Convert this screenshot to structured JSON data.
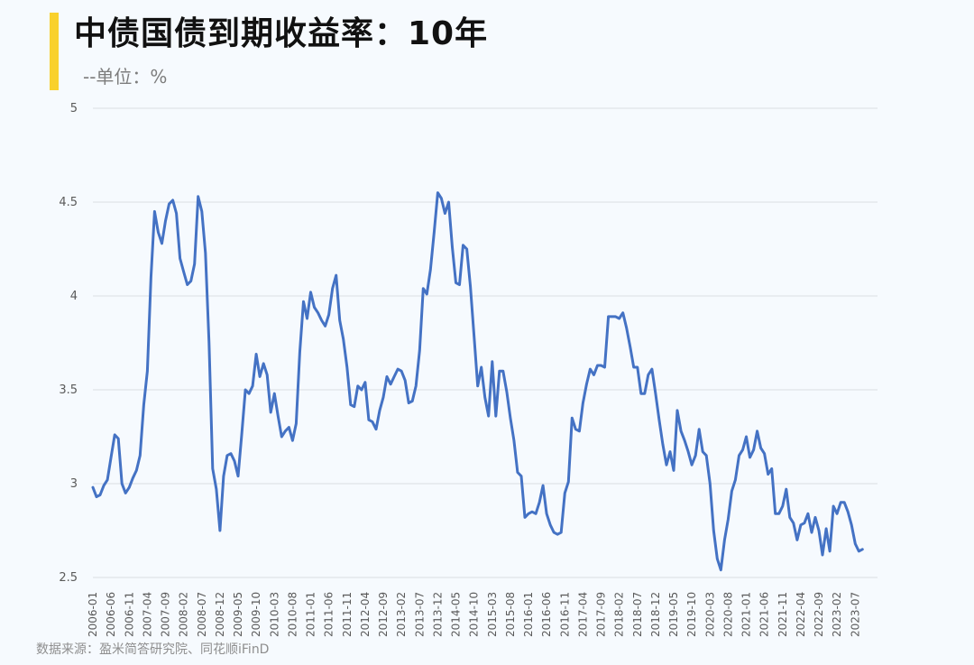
{
  "header": {
    "title": "中债国债到期收益率：10年",
    "subtitle": "--单位：%"
  },
  "footer": {
    "source": "数据来源：盈米简答研究院、同花顺iFinD"
  },
  "colors": {
    "accent": "#f9d12c",
    "line": "#4472c4",
    "grid": "#d9dde3",
    "background": "#f6fafe"
  },
  "chart_data": {
    "type": "line",
    "title": "中债国债到期收益率：10年",
    "ylabel": "%",
    "xlabel": "",
    "ylim": [
      2.5,
      5
    ],
    "yticks": [
      "5",
      "4.5",
      "4",
      "3.5",
      "3",
      "2.5"
    ],
    "grid": true,
    "x_start": "2006-01",
    "x_tick_labels": [
      "2006-01",
      "2006-06",
      "2006-11",
      "2007-04",
      "2007-09",
      "2008-02",
      "2008-07",
      "2008-12",
      "2009-05",
      "2009-10",
      "2010-03",
      "2010-08",
      "2011-01",
      "2011-06",
      "2011-11",
      "2012-04",
      "2012-09",
      "2013-02",
      "2013-07",
      "2013-12",
      "2014-05",
      "2014-10",
      "2015-03",
      "2015-08",
      "2016-01",
      "2016-06",
      "2016-11",
      "2017-04",
      "2017-09",
      "2018-02",
      "2018-07",
      "2018-12",
      "2019-05",
      "2019-10",
      "2020-03",
      "2020-08",
      "2021-01",
      "2021-06",
      "2021-11",
      "2022-04",
      "2022-09",
      "2023-02",
      "2023-07"
    ],
    "series": [
      {
        "values": [
          2.98,
          2.93,
          2.94,
          2.99,
          3.02,
          3.14,
          3.26,
          3.24,
          3.0,
          2.95,
          2.98,
          3.03,
          3.07,
          3.15,
          3.42,
          3.6,
          4.1,
          4.45,
          4.34,
          4.28,
          4.4,
          4.49,
          4.51,
          4.44,
          4.2,
          4.13,
          4.06,
          4.08,
          4.17,
          4.53,
          4.45,
          4.23,
          3.75,
          3.08,
          2.97,
          2.75,
          3.04,
          3.15,
          3.16,
          3.12,
          3.04,
          3.26,
          3.5,
          3.48,
          3.52,
          3.69,
          3.57,
          3.64,
          3.58,
          3.38,
          3.48,
          3.36,
          3.25,
          3.28,
          3.3,
          3.23,
          3.32,
          3.7,
          3.97,
          3.88,
          4.02,
          3.94,
          3.91,
          3.87,
          3.84,
          3.9,
          4.04,
          4.11,
          3.87,
          3.77,
          3.62,
          3.42,
          3.41,
          3.52,
          3.5,
          3.54,
          3.34,
          3.33,
          3.29,
          3.39,
          3.46,
          3.57,
          3.53,
          3.57,
          3.61,
          3.6,
          3.55,
          3.43,
          3.44,
          3.52,
          3.71,
          4.04,
          4.01,
          4.14,
          4.34,
          4.55,
          4.52,
          4.44,
          4.5,
          4.26,
          4.07,
          4.06,
          4.27,
          4.25,
          4.05,
          3.79,
          3.52,
          3.62,
          3.46,
          3.36,
          3.65,
          3.36,
          3.6,
          3.6,
          3.49,
          3.35,
          3.23,
          3.06,
          3.04,
          2.82,
          2.84,
          2.85,
          2.84,
          2.9,
          2.99,
          2.84,
          2.78,
          2.74,
          2.73,
          2.74,
          2.95,
          3.01,
          3.35,
          3.29,
          3.28,
          3.43,
          3.53,
          3.61,
          3.58,
          3.63,
          3.63,
          3.62,
          3.89,
          3.89,
          3.89,
          3.88,
          3.91,
          3.83,
          3.73,
          3.62,
          3.62,
          3.48,
          3.48,
          3.58,
          3.61,
          3.48,
          3.34,
          3.21,
          3.1,
          3.17,
          3.07,
          3.39,
          3.28,
          3.23,
          3.17,
          3.1,
          3.15,
          3.29,
          3.17,
          3.15,
          3.0,
          2.75,
          2.6,
          2.54,
          2.7,
          2.81,
          2.96,
          3.02,
          3.15,
          3.18,
          3.25,
          3.14,
          3.18,
          3.28,
          3.19,
          3.16,
          3.05,
          3.08,
          2.84,
          2.84,
          2.88,
          2.97,
          2.82,
          2.79,
          2.7,
          2.78,
          2.79,
          2.84,
          2.74,
          2.82,
          2.75,
          2.62,
          2.76,
          2.64,
          2.88,
          2.84,
          2.9,
          2.9,
          2.85,
          2.78,
          2.68,
          2.64,
          2.65
        ]
      }
    ]
  }
}
